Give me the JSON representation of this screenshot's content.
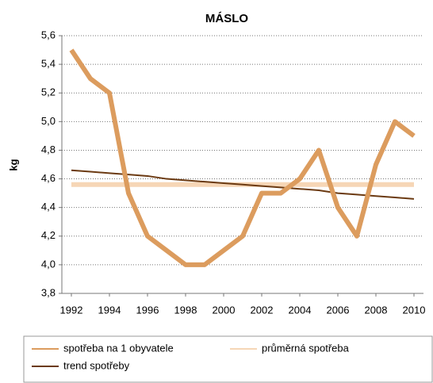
{
  "chart_data": {
    "type": "line",
    "title": "MÁSLO",
    "y_label": "kg",
    "x": [
      1992,
      1993,
      1994,
      1995,
      1996,
      1997,
      1998,
      1999,
      2000,
      2001,
      2002,
      2003,
      2004,
      2005,
      2006,
      2007,
      2008,
      2009,
      2010
    ],
    "series": [
      {
        "name": "spotřeba na 1 obyvatele",
        "color": "#dc9c5e",
        "values": [
          5.5,
          5.3,
          5.2,
          4.5,
          4.2,
          4.1,
          4.0,
          4.0,
          4.1,
          4.2,
          4.5,
          4.5,
          4.6,
          4.8,
          4.4,
          4.2,
          4.7,
          5.0,
          4.9
        ]
      },
      {
        "name": "průměrná spotřeba",
        "color": "#f6d6b6",
        "values": [
          4.56,
          4.56,
          4.56,
          4.56,
          4.56,
          4.56,
          4.56,
          4.56,
          4.56,
          4.56,
          4.56,
          4.56,
          4.56,
          4.56,
          4.56,
          4.56,
          4.56,
          4.56,
          4.56
        ]
      },
      {
        "name": "trend spotřeby",
        "color": "#6b3a12",
        "values": [
          4.66,
          4.65,
          4.64,
          4.63,
          4.62,
          4.6,
          4.59,
          4.58,
          4.57,
          4.56,
          4.55,
          4.54,
          4.53,
          4.52,
          4.5,
          4.49,
          4.48,
          4.47,
          4.46
        ]
      }
    ],
    "xlim": [
      1991.5,
      2010.5
    ],
    "xticks": [
      1992,
      1994,
      1996,
      1998,
      2000,
      2002,
      2004,
      2006,
      2008,
      2010
    ],
    "ylim": [
      3.8,
      5.6
    ],
    "yticks": [
      {
        "value": 3.8,
        "label": "3,8"
      },
      {
        "value": 4.0,
        "label": "4,0"
      },
      {
        "value": 4.2,
        "label": "4,2"
      },
      {
        "value": 4.4,
        "label": "4,4"
      },
      {
        "value": 4.6,
        "label": "4,6"
      },
      {
        "value": 4.8,
        "label": "4,8"
      },
      {
        "value": 5.0,
        "label": "5,0"
      },
      {
        "value": 5.2,
        "label": "5,2"
      },
      {
        "value": 5.4,
        "label": "5,4"
      },
      {
        "value": 5.6,
        "label": "5,6"
      }
    ],
    "grid": true,
    "legend": "bottom"
  }
}
